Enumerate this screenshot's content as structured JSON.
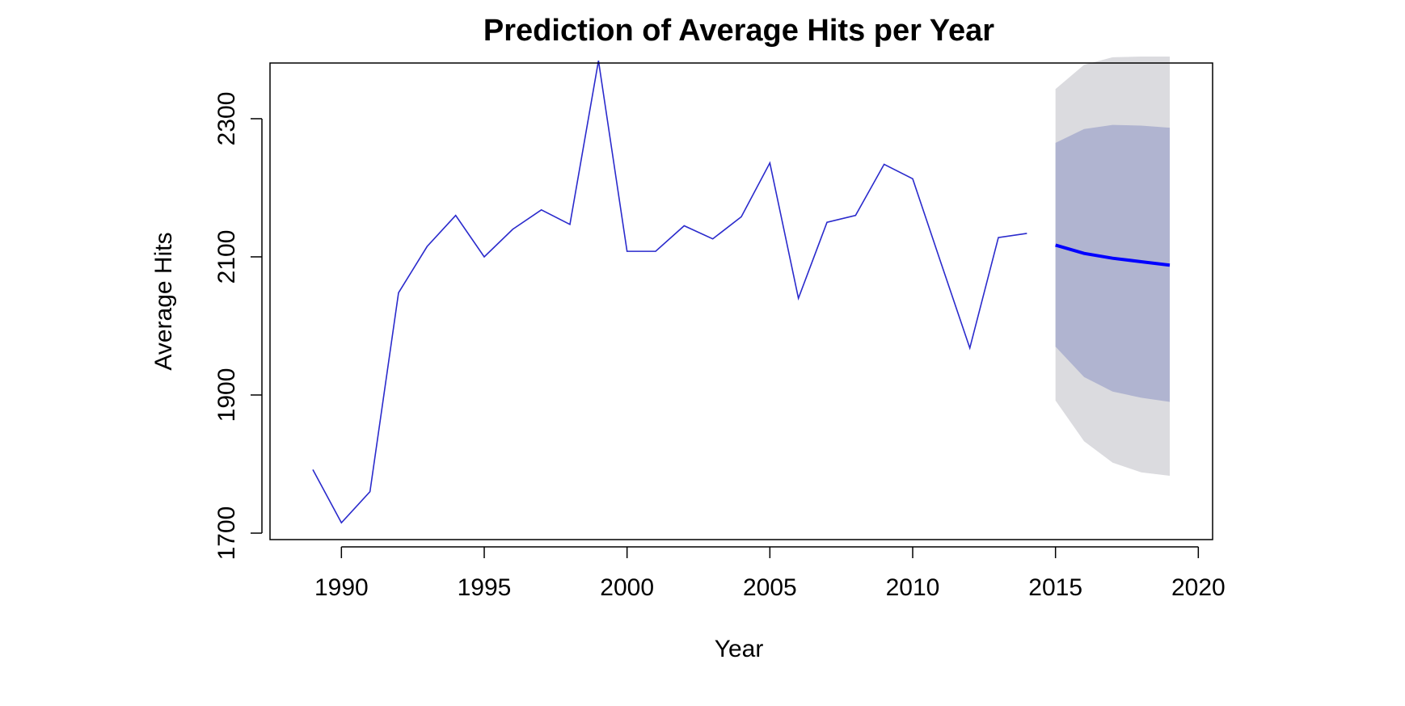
{
  "chart_data": {
    "type": "line",
    "title": "Prediction of Average Hits per Year",
    "xlabel": "Year",
    "ylabel": "Average Hits",
    "xlim": [
      1987.5,
      2020.5
    ],
    "ylim": [
      1700,
      2390
    ],
    "x_ticks": [
      1990,
      1995,
      2000,
      2005,
      2010,
      2015,
      2020
    ],
    "y_ticks": [
      1700,
      1900,
      2100,
      2300
    ],
    "observed": {
      "x": [
        1989,
        1990,
        1991,
        1992,
        1993,
        1994,
        1995,
        1996,
        1997,
        1998,
        1999,
        2000,
        2001,
        2002,
        2003,
        2004,
        2005,
        2006,
        2007,
        2008,
        2009,
        2010,
        2011,
        2012,
        2013,
        2014
      ],
      "y": [
        1792,
        1715,
        1760,
        2048,
        2115,
        2160,
        2100,
        2140,
        2168,
        2147,
        2384,
        2108,
        2108,
        2145,
        2126,
        2158,
        2236,
        2040,
        2150,
        2160,
        2234,
        2213,
        2090,
        1968,
        2128,
        2134
      ]
    },
    "forecast": {
      "x": [
        2015,
        2016,
        2017,
        2018,
        2019
      ],
      "mean": [
        2117,
        2105,
        2098,
        2093,
        2088
      ],
      "lo80": [
        1970,
        1926,
        1905,
        1896,
        1890
      ],
      "hi80": [
        2265,
        2285,
        2291,
        2290,
        2287
      ],
      "lo95": [
        1892,
        1833,
        1802,
        1788,
        1783
      ],
      "hi95": [
        2343,
        2378,
        2389,
        2390,
        2390
      ]
    },
    "colors": {
      "observed_line": "#2a2acc",
      "forecast_line": "#0000ff",
      "band_80": "#b0b4d0",
      "band_95": "#dbdbdf",
      "axis": "#000000"
    },
    "grid": false,
    "legend": "none"
  }
}
